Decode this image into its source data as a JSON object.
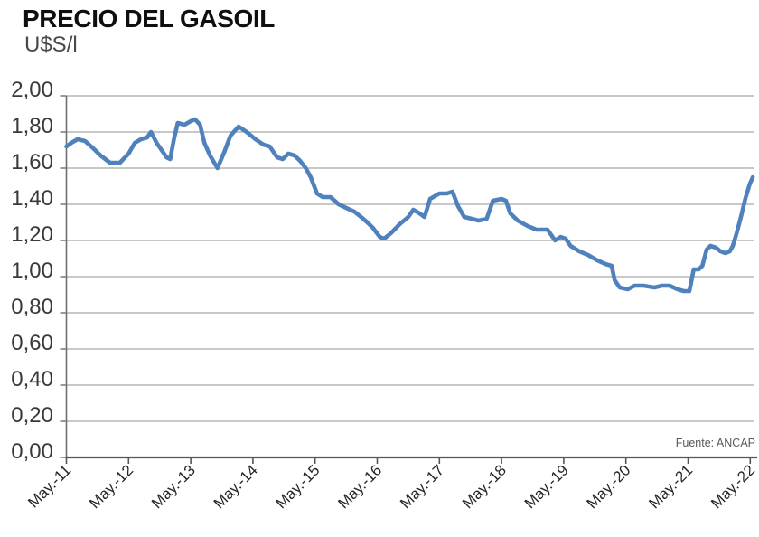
{
  "header": {
    "title": "PRECIO DEL GASOIL",
    "unit_label": "U$S/l"
  },
  "chart_data": {
    "type": "line",
    "title": "PRECIO DEL GASOIL",
    "ylabel": "U$S/l",
    "xlabel": "",
    "source": "Fuente: ANCAP",
    "legend_position": "none",
    "grid": true,
    "ylim": [
      0,
      2.0
    ],
    "x_years_range": [
      0,
      11
    ],
    "x_tick_labels": [
      "May.-11",
      "May.-12",
      "May.-13",
      "May.-14",
      "May.-15",
      "May.-16",
      "May.-17",
      "May.-18",
      "May.-19",
      "May.-20",
      "May.-21",
      "May.-22"
    ],
    "y_tick_labels": [
      "2,00",
      "1,80",
      "1,60",
      "1,40",
      "1,20",
      "1,00",
      "0,80",
      "0,60",
      "0,40",
      "0,20",
      "0,00"
    ],
    "line_color": "#4f81bd",
    "grid_color": "#a8a8a8",
    "axis_color": "#6f6f6f",
    "x_axis_color": "#565656",
    "tick_text_color": "#262626",
    "y_label_color": "#3a3a3a",
    "series": [
      {
        "name": "Precio del gasoil",
        "unit": "U$S/l",
        "points": [
          [
            0.0,
            1.72
          ],
          [
            0.08,
            1.74
          ],
          [
            0.18,
            1.76
          ],
          [
            0.3,
            1.75
          ],
          [
            0.43,
            1.71
          ],
          [
            0.55,
            1.67
          ],
          [
            0.7,
            1.63
          ],
          [
            0.86,
            1.63
          ],
          [
            1.0,
            1.68
          ],
          [
            1.1,
            1.74
          ],
          [
            1.2,
            1.76
          ],
          [
            1.3,
            1.77
          ],
          [
            1.36,
            1.8
          ],
          [
            1.45,
            1.74
          ],
          [
            1.53,
            1.7
          ],
          [
            1.61,
            1.66
          ],
          [
            1.67,
            1.65
          ],
          [
            1.73,
            1.76
          ],
          [
            1.79,
            1.85
          ],
          [
            1.9,
            1.84
          ],
          [
            2.0,
            1.86
          ],
          [
            2.07,
            1.87
          ],
          [
            2.15,
            1.84
          ],
          [
            2.22,
            1.74
          ],
          [
            2.31,
            1.67
          ],
          [
            2.43,
            1.6
          ],
          [
            2.54,
            1.69
          ],
          [
            2.64,
            1.78
          ],
          [
            2.77,
            1.83
          ],
          [
            2.9,
            1.8
          ],
          [
            3.04,
            1.76
          ],
          [
            3.17,
            1.73
          ],
          [
            3.27,
            1.72
          ],
          [
            3.39,
            1.66
          ],
          [
            3.48,
            1.65
          ],
          [
            3.57,
            1.68
          ],
          [
            3.67,
            1.67
          ],
          [
            3.76,
            1.64
          ],
          [
            3.85,
            1.6
          ],
          [
            3.93,
            1.55
          ],
          [
            4.03,
            1.46
          ],
          [
            4.12,
            1.44
          ],
          [
            4.25,
            1.44
          ],
          [
            4.38,
            1.4
          ],
          [
            4.5,
            1.38
          ],
          [
            4.63,
            1.36
          ],
          [
            4.74,
            1.33
          ],
          [
            4.84,
            1.3
          ],
          [
            4.93,
            1.27
          ],
          [
            5.04,
            1.22
          ],
          [
            5.11,
            1.21
          ],
          [
            5.22,
            1.24
          ],
          [
            5.36,
            1.29
          ],
          [
            5.5,
            1.33
          ],
          [
            5.58,
            1.37
          ],
          [
            5.68,
            1.35
          ],
          [
            5.76,
            1.33
          ],
          [
            5.85,
            1.43
          ],
          [
            6.0,
            1.46
          ],
          [
            6.12,
            1.46
          ],
          [
            6.21,
            1.47
          ],
          [
            6.3,
            1.39
          ],
          [
            6.4,
            1.33
          ],
          [
            6.52,
            1.32
          ],
          [
            6.63,
            1.31
          ],
          [
            6.76,
            1.32
          ],
          [
            6.86,
            1.42
          ],
          [
            7.0,
            1.43
          ],
          [
            7.07,
            1.42
          ],
          [
            7.14,
            1.35
          ],
          [
            7.26,
            1.31
          ],
          [
            7.42,
            1.28
          ],
          [
            7.56,
            1.26
          ],
          [
            7.74,
            1.26
          ],
          [
            7.86,
            1.2
          ],
          [
            7.95,
            1.22
          ],
          [
            8.03,
            1.21
          ],
          [
            8.11,
            1.17
          ],
          [
            8.25,
            1.14
          ],
          [
            8.39,
            1.12
          ],
          [
            8.54,
            1.09
          ],
          [
            8.67,
            1.07
          ],
          [
            8.77,
            1.06
          ],
          [
            8.82,
            0.98
          ],
          [
            8.9,
            0.94
          ],
          [
            9.03,
            0.93
          ],
          [
            9.14,
            0.95
          ],
          [
            9.28,
            0.95
          ],
          [
            9.46,
            0.94
          ],
          [
            9.58,
            0.95
          ],
          [
            9.7,
            0.95
          ],
          [
            9.83,
            0.93
          ],
          [
            9.93,
            0.92
          ],
          [
            10.02,
            0.92
          ],
          [
            10.09,
            1.04
          ],
          [
            10.17,
            1.04
          ],
          [
            10.23,
            1.06
          ],
          [
            10.3,
            1.15
          ],
          [
            10.36,
            1.17
          ],
          [
            10.45,
            1.16
          ],
          [
            10.52,
            1.14
          ],
          [
            10.6,
            1.13
          ],
          [
            10.67,
            1.14
          ],
          [
            10.72,
            1.17
          ],
          [
            10.78,
            1.24
          ],
          [
            10.85,
            1.33
          ],
          [
            10.92,
            1.43
          ],
          [
            10.99,
            1.51
          ],
          [
            11.04,
            1.55
          ]
        ]
      }
    ]
  }
}
